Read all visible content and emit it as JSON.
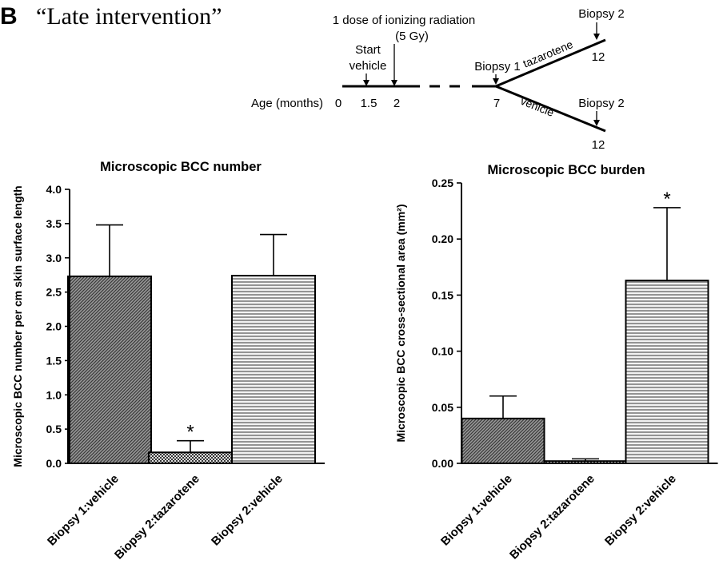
{
  "header": {
    "panel_letter": "B",
    "panel_title": "“Late intervention”"
  },
  "timeline": {
    "radiation_label_1": "1 dose of ionizing radiation",
    "radiation_label_2": "(5 Gy)",
    "start_label_1": "Start",
    "start_label_2": "vehicle",
    "age_label": "Age (months)",
    "ticks": [
      "0",
      "1.5",
      "2",
      "7",
      "12",
      "12"
    ],
    "biopsy1_label": "Biopsy 1",
    "biopsy2_top_label": "Biopsy 2",
    "biopsy2_bottom_label": "Biopsy 2",
    "branch_top_label": "tazarotene",
    "branch_bottom_label": "vehicle"
  },
  "chart_data": [
    {
      "type": "bar",
      "title": "Microscopic BCC number",
      "ylabel": "Microscopic BCC number per cm skin surface length",
      "xlabel": "",
      "categories": [
        "Biopsy 1:vehicle",
        "Biopsy 2:tazarotene",
        "Biopsy 2:vehicle"
      ],
      "values": [
        2.73,
        0.16,
        2.74
      ],
      "errors": [
        0.75,
        0.17,
        0.6
      ],
      "significance": [
        "",
        "*",
        ""
      ],
      "ylim": [
        0,
        4.0
      ],
      "yticks": [
        "0.0",
        "0.5",
        "1.0",
        "1.5",
        "2.0",
        "2.5",
        "3.0",
        "3.5",
        "4.0"
      ],
      "ytick_values": [
        0,
        0.5,
        1.0,
        1.5,
        2.0,
        2.5,
        3.0,
        3.5,
        4.0
      ],
      "patterns": [
        "diagonal",
        "checker",
        "horizontal"
      ],
      "grid": false
    },
    {
      "type": "bar",
      "title": "Microscopic BCC burden",
      "ylabel": "Microscopic BCC cross-sectional area (mm²)",
      "xlabel": "",
      "categories": [
        "Biopsy 1:vehicle",
        "Biopsy 2:tazarotene",
        "Biopsy 2:vehicle"
      ],
      "values": [
        0.04,
        0.002,
        0.163
      ],
      "errors": [
        0.02,
        0.002,
        0.065
      ],
      "significance": [
        "",
        "",
        "*"
      ],
      "ylim": [
        0,
        0.25
      ],
      "yticks": [
        "0.00",
        "0.05",
        "0.10",
        "0.15",
        "0.20",
        "0.25"
      ],
      "ytick_values": [
        0,
        0.05,
        0.1,
        0.15,
        0.2,
        0.25
      ],
      "patterns": [
        "diagonal",
        "checker",
        "horizontal"
      ],
      "grid": false
    }
  ]
}
